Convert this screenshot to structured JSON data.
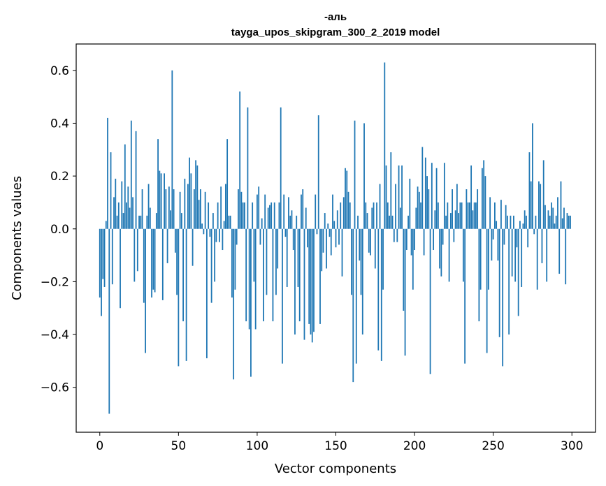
{
  "chart_data": {
    "type": "bar",
    "title_line1": "-аль",
    "title_line2": "tayga_upos_skipgram_300_2_2019 model",
    "xlabel": "Vector components",
    "ylabel": "Components values",
    "xlim": [
      -15,
      315
    ],
    "ylim": [
      -0.77,
      0.7
    ],
    "xticks": [
      0,
      50,
      100,
      150,
      200,
      250,
      300
    ],
    "xtick_labels": [
      "0",
      "50",
      "100",
      "150",
      "200",
      "250",
      "300"
    ],
    "yticks": [
      -0.6,
      -0.4,
      -0.2,
      0.0,
      0.2,
      0.4,
      0.6
    ],
    "ytick_labels": [
      "−0.6",
      "−0.4",
      "−0.2",
      "0.0",
      "0.2",
      "0.4",
      "0.6"
    ],
    "grid": false,
    "bar_color": "#1f77b4",
    "values": [
      -0.26,
      -0.33,
      -0.19,
      -0.22,
      0.03,
      0.42,
      -0.7,
      0.29,
      -0.21,
      0.12,
      0.19,
      0.05,
      0.1,
      -0.3,
      0.18,
      0.06,
      0.32,
      0.1,
      0.16,
      0.08,
      0.41,
      0.12,
      -0.2,
      0.37,
      -0.16,
      0.05,
      0.05,
      0.15,
      -0.28,
      -0.47,
      0.05,
      0.17,
      0.08,
      -0.26,
      -0.23,
      -0.24,
      0.06,
      0.34,
      0.22,
      0.21,
      -0.27,
      0.21,
      0.15,
      -0.13,
      0.16,
      0.07,
      0.6,
      0.15,
      -0.09,
      -0.25,
      -0.52,
      0.14,
      0.06,
      -0.35,
      0.19,
      -0.5,
      0.17,
      0.27,
      0.21,
      -0.14,
      0.15,
      0.26,
      0.24,
      0.11,
      0.15,
      0.02,
      -0.02,
      0.14,
      -0.49,
      0.1,
      -0.03,
      -0.28,
      0.06,
      -0.2,
      -0.05,
      0.1,
      -0.05,
      0.16,
      -0.08,
      0.03,
      0.17,
      0.34,
      0.05,
      0.05,
      -0.26,
      -0.57,
      -0.23,
      -0.06,
      0.15,
      0.52,
      0.14,
      0.1,
      0.1,
      -0.35,
      0.46,
      -0.38,
      -0.56,
      0.1,
      -0.2,
      -0.38,
      0.13,
      0.16,
      -0.06,
      0.04,
      -0.35,
      0.13,
      -0.25,
      0.08,
      0.09,
      0.1,
      -0.35,
      0.1,
      -0.25,
      -0.15,
      0.1,
      0.46,
      -0.51,
      0.13,
      -0.03,
      -0.22,
      0.12,
      0.05,
      0.07,
      -0.08,
      -0.4,
      0.05,
      -0.22,
      -0.35,
      0.13,
      0.15,
      -0.42,
      0.08,
      -0.07,
      -0.36,
      -0.4,
      -0.43,
      -0.39,
      0.13,
      -0.02,
      0.43,
      -0.36,
      -0.16,
      -0.09,
      0.06,
      -0.15,
      0.02,
      -0.03,
      -0.1,
      0.13,
      0.03,
      -0.07,
      0.07,
      -0.06,
      0.1,
      -0.18,
      0.12,
      0.23,
      0.22,
      0.14,
      0.1,
      -0.25,
      -0.58,
      0.41,
      -0.51,
      0.05,
      -0.12,
      -0.25,
      -0.4,
      0.4,
      0.1,
      0.06,
      -0.09,
      -0.1,
      0.08,
      0.1,
      -0.15,
      0.1,
      -0.46,
      0.17,
      -0.5,
      -0.23,
      0.63,
      0.24,
      0.1,
      0.05,
      0.29,
      0.05,
      -0.05,
      0.17,
      -0.05,
      0.24,
      0.08,
      0.24,
      -0.31,
      -0.48,
      -0.08,
      0.05,
      0.19,
      -0.1,
      -0.23,
      -0.08,
      0.08,
      0.16,
      0.14,
      0.1,
      0.31,
      -0.1,
      0.27,
      0.2,
      0.15,
      -0.55,
      0.25,
      -0.08,
      0.07,
      0.23,
      0.1,
      -0.15,
      -0.18,
      -0.06,
      0.25,
      0.05,
      0.1,
      -0.2,
      0.06,
      0.15,
      -0.05,
      0.07,
      0.17,
      0.06,
      0.1,
      0.1,
      -0.2,
      -0.51,
      0.15,
      0.1,
      0.1,
      0.24,
      0.07,
      0.1,
      0.1,
      0.15,
      -0.35,
      -0.23,
      0.23,
      0.26,
      0.2,
      -0.47,
      -0.23,
      0.12,
      -0.12,
      -0.04,
      0.1,
      0.03,
      -0.12,
      -0.41,
      0.11,
      -0.52,
      -0.06,
      0.09,
      0.05,
      -0.4,
      0.05,
      -0.18,
      0.05,
      -0.2,
      -0.07,
      -0.33,
      0.03,
      -0.22,
      0.02,
      0.07,
      0.05,
      -0.07,
      0.29,
      0.18,
      0.4,
      -0.02,
      0.05,
      -0.23,
      0.18,
      0.17,
      -0.13,
      0.26,
      0.09,
      -0.2,
      0.07,
      0.05,
      0.1,
      0.08,
      0.02,
      0.05,
      0.12,
      -0.17,
      0.18,
      0.04,
      0.08,
      -0.21,
      0.06,
      0.05,
      0.05
    ]
  }
}
